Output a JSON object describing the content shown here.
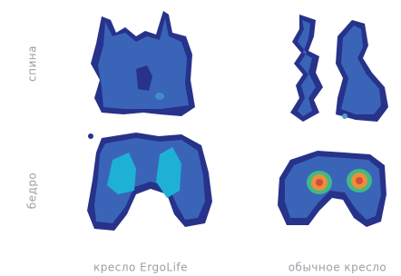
{
  "row_labels": [
    "спина",
    "бедро"
  ],
  "column_labels": [
    "кресло ErgoLife",
    "обычное кресло"
  ]
}
